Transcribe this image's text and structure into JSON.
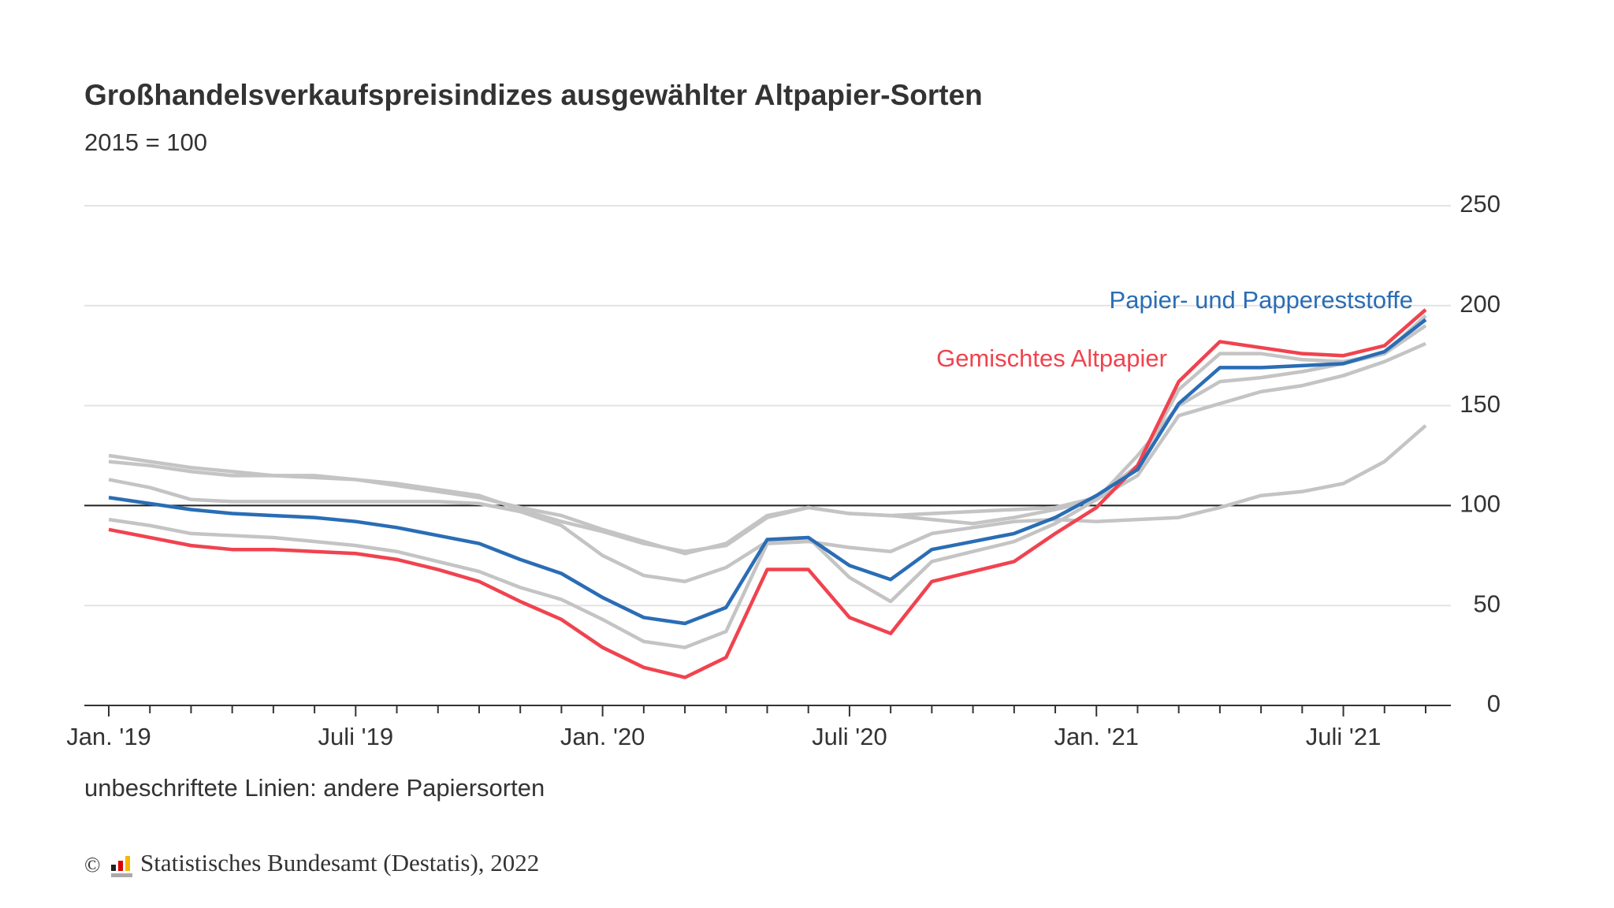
{
  "chart_data": {
    "type": "line",
    "title": "Großhandelsverkaufspreisindizes ausgewählter Altpapier-Sorten",
    "subtitle": "2015 = 100",
    "categories": [
      "Jan. '19",
      null,
      null,
      null,
      null,
      null,
      "Juli '19",
      null,
      null,
      null,
      null,
      null,
      "Jan. '20",
      null,
      null,
      null,
      null,
      null,
      "Juli '20",
      null,
      null,
      null,
      null,
      null,
      "Jan. '21",
      null,
      null,
      null,
      null,
      null,
      "Juli '21",
      null,
      null
    ],
    "ylim": [
      0,
      250
    ],
    "yticks": [
      0,
      50,
      100,
      150,
      200,
      250
    ],
    "grid": true,
    "reference_line": 100,
    "series": [
      {
        "name": "Papier- und Pappereststoffe",
        "color": "#2a6db5",
        "values": [
          104,
          101,
          98,
          96,
          95,
          94,
          92,
          89,
          85,
          81,
          73,
          66,
          54,
          44,
          41,
          49,
          83,
          84,
          70,
          63,
          78,
          82,
          86,
          94,
          105,
          118,
          151,
          169,
          169,
          170,
          171,
          177,
          193
        ]
      },
      {
        "name": "Gemischtes Altpapier",
        "color": "#f0434f",
        "values": [
          88,
          84,
          80,
          78,
          78,
          77,
          76,
          73,
          68,
          62,
          52,
          43,
          29,
          19,
          14,
          24,
          68,
          68,
          44,
          36,
          62,
          67,
          72,
          86,
          99,
          120,
          162,
          182,
          179,
          176,
          175,
          180,
          198
        ]
      },
      {
        "color": "#c4c4c4",
        "values": [
          125,
          122,
          119,
          117,
          115,
          114,
          113,
          111,
          108,
          105,
          98,
          92,
          87,
          81,
          77,
          80,
          94,
          99,
          96,
          95,
          96,
          97,
          98,
          99,
          104,
          120,
          158,
          176,
          176,
          173,
          172,
          176,
          195
        ]
      },
      {
        "color": "#c4c4c4",
        "values": [
          122,
          120,
          117,
          115,
          115,
          115,
          113,
          110,
          107,
          104,
          99,
          95,
          88,
          82,
          76,
          81,
          95,
          99,
          96,
          95,
          93,
          91,
          94,
          98,
          103,
          125,
          150,
          162,
          164,
          167,
          171,
          176,
          190
        ]
      },
      {
        "color": "#c4c4c4",
        "values": [
          113,
          109,
          103,
          102,
          102,
          102,
          102,
          102,
          102,
          101,
          97,
          90,
          75,
          65,
          62,
          69,
          82,
          84,
          64,
          52,
          72,
          77,
          82,
          91,
          103,
          115,
          145,
          151,
          157,
          160,
          165,
          172,
          181
        ]
      },
      {
        "color": "#c4c4c4",
        "values": [
          93,
          90,
          86,
          85,
          84,
          82,
          80,
          77,
          72,
          67,
          59,
          53,
          43,
          32,
          29,
          37,
          81,
          82,
          79,
          77,
          86,
          89,
          92,
          93,
          92,
          93,
          94,
          99,
          105,
          107,
          111,
          122,
          140
        ]
      }
    ],
    "note": "unbeschriftete Linien: andere Papiersorten",
    "copyright": "©",
    "source": "Statistisches Bundesamt (Destatis), 2022"
  }
}
